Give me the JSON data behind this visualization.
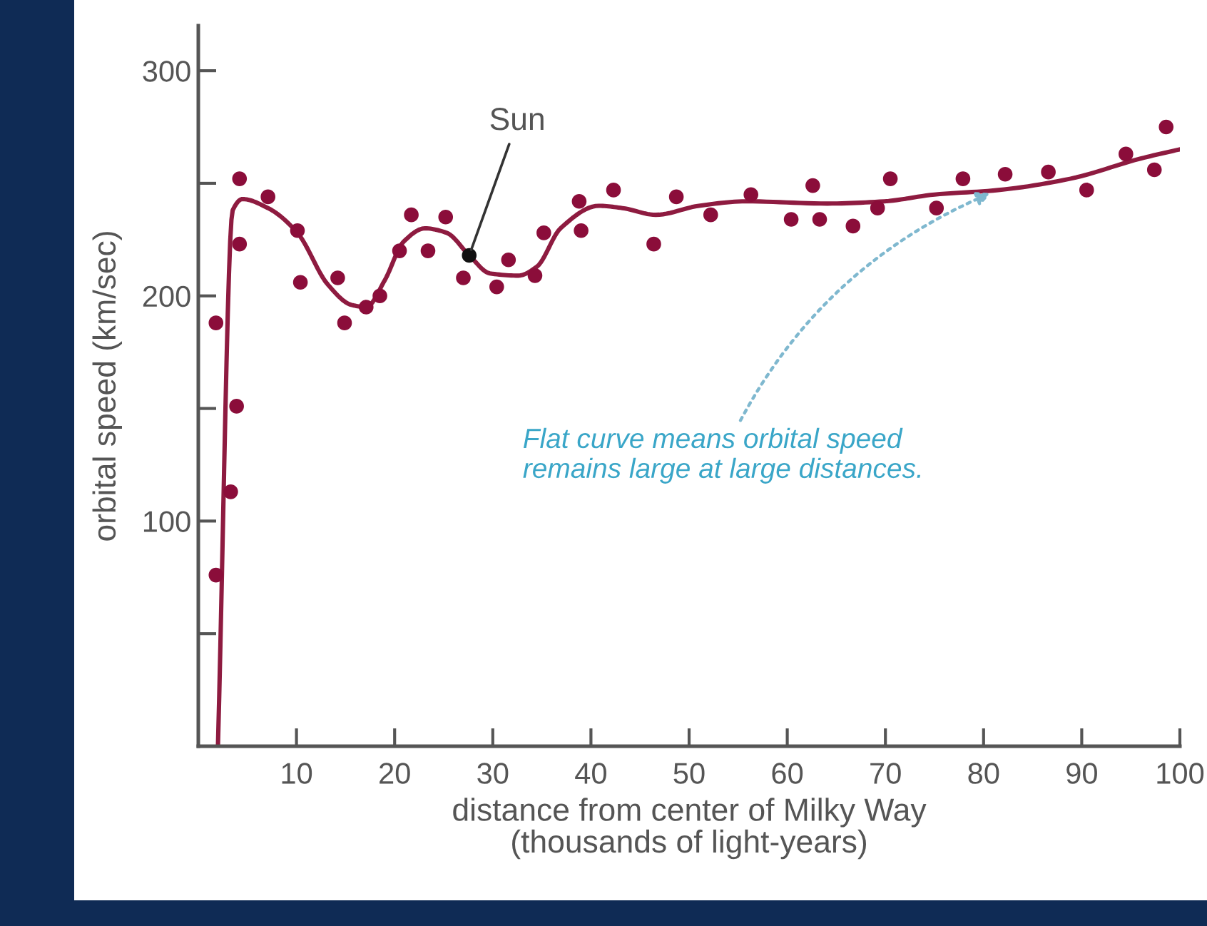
{
  "chart_data": {
    "type": "scatter",
    "xlabel": "distance from center of Milky Way\n(thousands of light-years)",
    "ylabel": "orbital speed (km/sec)",
    "xlim": [
      0,
      100
    ],
    "xticks": [
      10,
      20,
      30,
      40,
      50,
      60,
      70,
      80,
      90,
      100
    ],
    "ylim": [
      0,
      320
    ],
    "yticks": [
      {
        "value": 50,
        "label": null
      },
      100,
      {
        "value": 150,
        "label": null
      },
      200,
      {
        "value": 250,
        "label": null
      },
      300
    ],
    "marker": "circle",
    "series": [
      {
        "type": "line",
        "color": "#8e1b40",
        "line_style": "solid",
        "marker": "none",
        "x": [
          2.0,
          3.5,
          4.5,
          7.1,
          10.1,
          13.2,
          15.6,
          17.1,
          19.0,
          20.9,
          23.1,
          25.3,
          27.6,
          29.7,
          32.6,
          34.5,
          36.9,
          40.8,
          43.2,
          46.6,
          51.0,
          55.8,
          64.1,
          69.9,
          75.0,
          81.5,
          88.8,
          96.0,
          99.9
        ],
        "values": [
          0,
          238,
          243,
          239,
          228,
          205,
          196,
          195,
          207,
          224,
          230,
          228,
          218,
          210,
          209,
          213,
          230,
          240,
          239,
          236,
          240,
          242,
          241,
          242,
          245,
          247,
          252,
          261,
          265
        ]
      },
      {
        "color": "#8b0d3a",
        "x": [
          1.8,
          1.8,
          3.3,
          3.9,
          4.2,
          4.2,
          7.1,
          10.1,
          10.4,
          14.2,
          14.9,
          17.1,
          18.5,
          20.5,
          21.7,
          23.4,
          25.2,
          27.0,
          30.4,
          31.6,
          34.3,
          35.2,
          38.8,
          39.0,
          42.3,
          46.4,
          48.7,
          52.2,
          56.3,
          60.4,
          62.6,
          63.3,
          66.7,
          69.2,
          70.5,
          75.2,
          77.9,
          82.2,
          86.6,
          90.5,
          94.5,
          97.4,
          98.6
        ],
        "values": [
          76,
          188,
          113,
          151,
          252,
          223,
          244,
          229,
          206,
          208,
          188,
          195,
          200,
          220,
          236,
          220,
          235,
          208,
          204,
          216,
          209,
          228,
          242,
          229,
          247,
          223,
          244,
          236,
          245,
          234,
          249,
          234,
          231,
          239,
          252,
          239,
          252,
          254,
          255,
          247,
          263,
          256,
          275
        ]
      },
      {
        "color": "#111111",
        "x": [
          27.6
        ],
        "values": [
          218
        ]
      }
    ],
    "annotations": [
      {
        "text": "Sun",
        "x": 27.6,
        "y": 218
      },
      {
        "text": "Flat curve means orbital speed\nremains large at large distances.",
        "x": 81.5,
        "y": 247
      }
    ]
  }
}
